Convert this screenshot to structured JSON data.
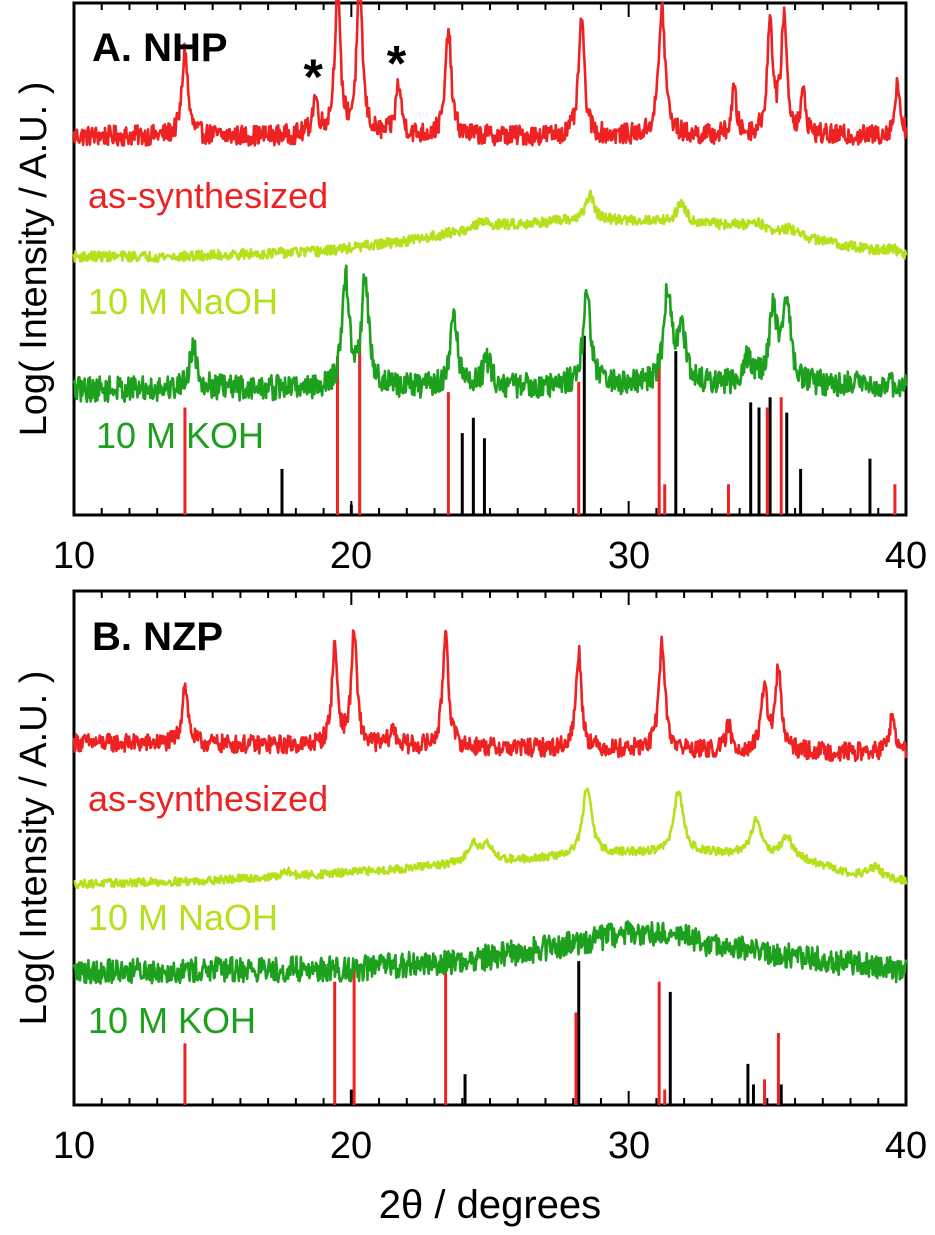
{
  "chart_data": [
    {
      "type": "line",
      "panel_label": "A. NHP",
      "ylabel": "Log( Intensity / A.U. )",
      "xlim": [
        10,
        40
      ],
      "x_ticks": [
        "10",
        "20",
        "30",
        "40"
      ],
      "y_scale": "log",
      "grid": false,
      "legend": "inline labels beneath each trace",
      "series": [
        {
          "name": "as-synthesized",
          "color": "#ee2222",
          "baseline": 0.74,
          "rise": [
            [
              10,
              0
            ],
            [
              40,
              0
            ]
          ],
          "peaks": [
            [
              14.0,
              0.17,
              0.12
            ],
            [
              18.7,
              0.07,
              0.12
            ],
            [
              19.5,
              0.28,
              0.12
            ],
            [
              20.3,
              0.3,
              0.12
            ],
            [
              21.7,
              0.1,
              0.12
            ],
            [
              23.5,
              0.21,
              0.12
            ],
            [
              28.3,
              0.23,
              0.12
            ],
            [
              31.2,
              0.25,
              0.14
            ],
            [
              33.8,
              0.09,
              0.1
            ],
            [
              35.1,
              0.22,
              0.12
            ],
            [
              35.6,
              0.23,
              0.12
            ],
            [
              36.3,
              0.08,
              0.1
            ],
            [
              39.7,
              0.1,
              0.12
            ]
          ],
          "noise": 0.02,
          "annotations": [
            {
              "text": "*",
              "x": 18.7
            },
            {
              "text": "*",
              "x": 21.7
            }
          ]
        },
        {
          "name": "10 M NaOH",
          "color": "#b5e01c",
          "baseline": 0.505,
          "rise": [
            [
              10,
              0
            ],
            [
              14,
              0
            ],
            [
              19,
              0.01
            ],
            [
              22,
              0.03
            ],
            [
              25,
              0.06
            ],
            [
              28,
              0.07
            ],
            [
              31,
              0.07
            ],
            [
              34,
              0.06
            ],
            [
              38,
              0.02
            ],
            [
              40,
              0.0
            ]
          ],
          "peaks": [
            [
              24.7,
              0.01,
              0.25
            ],
            [
              28.6,
              0.05,
              0.18
            ],
            [
              31.9,
              0.04,
              0.18
            ],
            [
              34.6,
              0.015,
              0.25
            ],
            [
              35.8,
              0.012,
              0.25
            ],
            [
              39.5,
              0.01,
              0.25
            ]
          ],
          "noise": 0.01
        },
        {
          "name": "10 M KOH",
          "color": "#1da01d",
          "baseline": 0.245,
          "rise": [
            [
              10,
              0
            ],
            [
              40,
              0.01
            ]
          ],
          "peaks": [
            [
              14.3,
              0.08,
              0.17
            ],
            [
              19.8,
              0.21,
              0.15
            ],
            [
              20.5,
              0.21,
              0.15
            ],
            [
              23.7,
              0.14,
              0.15
            ],
            [
              24.9,
              0.05,
              0.18
            ],
            [
              28.5,
              0.18,
              0.17
            ],
            [
              31.4,
              0.18,
              0.17
            ],
            [
              31.9,
              0.12,
              0.15
            ],
            [
              34.3,
              0.05,
              0.2
            ],
            [
              35.2,
              0.14,
              0.17
            ],
            [
              35.7,
              0.16,
              0.17
            ]
          ],
          "noise": 0.025
        }
      ],
      "reference_sticks": {
        "red": [
          [
            14.0,
            0.21
          ],
          [
            19.5,
            0.31
          ],
          [
            20.3,
            0.34
          ],
          [
            23.5,
            0.24
          ],
          [
            28.2,
            0.26
          ],
          [
            31.1,
            0.29
          ],
          [
            31.3,
            0.06
          ],
          [
            33.6,
            0.06
          ],
          [
            35.0,
            0.21
          ],
          [
            35.5,
            0.23
          ],
          [
            39.6,
            0.06
          ]
        ],
        "black": [
          [
            17.5,
            0.09
          ],
          [
            20.0,
            0.02
          ],
          [
            24.0,
            0.16
          ],
          [
            24.4,
            0.19
          ],
          [
            24.8,
            0.15
          ],
          [
            28.4,
            0.35
          ],
          [
            31.7,
            0.32
          ],
          [
            34.4,
            0.22
          ],
          [
            34.7,
            0.21
          ],
          [
            35.1,
            0.23
          ],
          [
            35.7,
            0.2
          ],
          [
            36.2,
            0.09
          ],
          [
            38.7,
            0.11
          ]
        ]
      },
      "series_labels": [
        {
          "text": "as-synthesized",
          "color": "#ee2222",
          "y": 0.635
        },
        {
          "text": "10 M NaOH",
          "color": "#b5e01c",
          "y": 0.405
        },
        {
          "text": "10 M KOH",
          "color": "#1da01d",
          "y": 0.15
        }
      ]
    },
    {
      "type": "line",
      "panel_label": "B. NZP",
      "ylabel": "Log( Intensity / A.U. )",
      "xlabel": "2θ / degrees",
      "xlim": [
        10,
        40
      ],
      "x_ticks": [
        "10",
        "20",
        "30",
        "40"
      ],
      "y_scale": "log",
      "grid": false,
      "legend": "inline labels beneath each trace",
      "series": [
        {
          "name": "as-synthesized",
          "color": "#ee2222",
          "baseline": 0.705,
          "rise": [
            [
              10,
              0
            ],
            [
              40,
              -0.02
            ]
          ],
          "peaks": [
            [
              14.0,
              0.12,
              0.12
            ],
            [
              19.4,
              0.19,
              0.12
            ],
            [
              20.1,
              0.22,
              0.12
            ],
            [
              21.5,
              0.03,
              0.15
            ],
            [
              23.4,
              0.23,
              0.12
            ],
            [
              28.2,
              0.19,
              0.12
            ],
            [
              31.2,
              0.21,
              0.13
            ],
            [
              33.6,
              0.05,
              0.1
            ],
            [
              34.9,
              0.13,
              0.12
            ],
            [
              35.4,
              0.16,
              0.12
            ],
            [
              39.5,
              0.07,
              0.12
            ]
          ],
          "noise": 0.018
        },
        {
          "name": "10 M NaOH",
          "color": "#b5e01c",
          "baseline": 0.43,
          "rise": [
            [
              10,
              0
            ],
            [
              14,
              0.005
            ],
            [
              18,
              0.015
            ],
            [
              22,
              0.03
            ],
            [
              24,
              0.04
            ],
            [
              27,
              0.05
            ],
            [
              30,
              0.06
            ],
            [
              33,
              0.06
            ],
            [
              36,
              0.05
            ],
            [
              38,
              0.02
            ],
            [
              40,
              0.005
            ]
          ],
          "peaks": [
            [
              17.7,
              0.01,
              0.2
            ],
            [
              24.4,
              0.04,
              0.2
            ],
            [
              24.9,
              0.035,
              0.2
            ],
            [
              28.5,
              0.13,
              0.2
            ],
            [
              31.8,
              0.12,
              0.2
            ],
            [
              34.6,
              0.07,
              0.22
            ],
            [
              35.7,
              0.04,
              0.22
            ],
            [
              38.9,
              0.02,
              0.25
            ]
          ],
          "noise": 0.008
        },
        {
          "name": "10 M KOH",
          "color": "#1da01d",
          "baseline": 0.26,
          "rise": [
            [
              10,
              0
            ],
            [
              20,
              0.005
            ],
            [
              24,
              0.02
            ],
            [
              27,
              0.045
            ],
            [
              30,
              0.075
            ],
            [
              31.5,
              0.075
            ],
            [
              33,
              0.05
            ],
            [
              36,
              0.03
            ],
            [
              40,
              0.0
            ]
          ],
          "peaks": [],
          "noise": 0.025
        }
      ],
      "reference_sticks": {
        "red": [
          [
            14.0,
            0.12
          ],
          [
            19.4,
            0.24
          ],
          [
            20.1,
            0.27
          ],
          [
            23.4,
            0.26
          ],
          [
            28.1,
            0.18
          ],
          [
            31.1,
            0.24
          ],
          [
            31.3,
            0.03
          ],
          [
            34.9,
            0.05
          ],
          [
            35.4,
            0.14
          ]
        ],
        "black": [
          [
            20.0,
            0.03
          ],
          [
            24.1,
            0.06
          ],
          [
            28.2,
            0.28
          ],
          [
            31.5,
            0.22
          ],
          [
            34.3,
            0.08
          ],
          [
            34.5,
            0.04
          ],
          [
            35.5,
            0.04
          ]
        ]
      },
      "series_labels": [
        {
          "text": "as-synthesized",
          "color": "#ee2222",
          "y": 0.605
        },
        {
          "text": "10 M NaOH",
          "color": "#b5e01c",
          "y": 0.345
        },
        {
          "text": "10 M KOH",
          "color": "#1da01d",
          "y": 0.165
        }
      ]
    }
  ]
}
